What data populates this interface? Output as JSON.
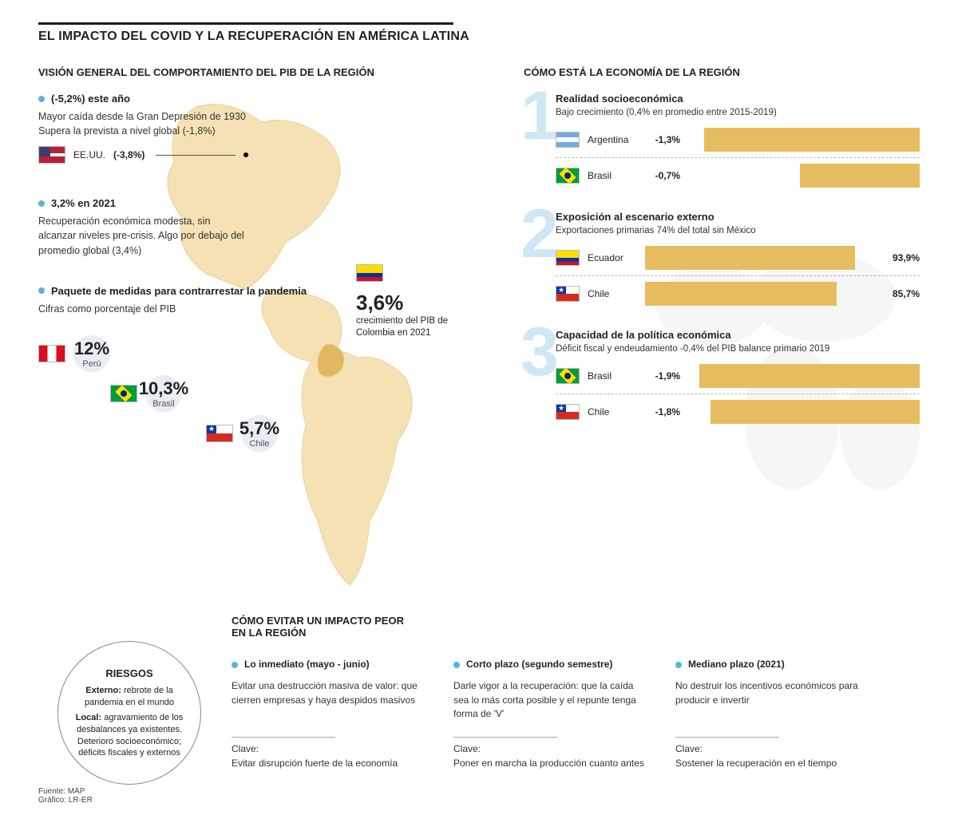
{
  "colors": {
    "accent": "#5cb3d9",
    "bar": "#e6bd5e",
    "bignum": "#cfe7f5",
    "map": "#f5e0b0"
  },
  "title": "EL IMPACTO DEL COVID Y LA RECUPERACIÓN EN AMÉRICA LATINA",
  "left_heading": "VISIÓN GENERAL DEL COMPORTAMIENTO DEL PIB DE LA REGIÓN",
  "right_heading": "CÓMO ESTÁ LA ECONOMÍA DE LA REGIÓN",
  "bullets": [
    {
      "title": "(-5,2%) este año",
      "lines": [
        "Mayor caída desde la Gran Depresión de 1930",
        "Supera la prevista a nivel global (-1,8%)"
      ],
      "us": {
        "label": "EE.UU.",
        "value": "(-3,8%)"
      }
    },
    {
      "title": "3,2% en 2021",
      "lines": [
        "Recuperación económica modesta, sin alcanzar niveles pre-crisis. Algo por debajo del promedio global (3,4%)"
      ]
    },
    {
      "title": "Paquete de medidas para contrarrestar la pandemia",
      "sub": "Cifras como porcentaje del PIB"
    }
  ],
  "stimulus": [
    {
      "country": "Perú",
      "flag": "pe",
      "value": "12%"
    },
    {
      "country": "Brasil",
      "flag": "br",
      "value": "10,3%"
    },
    {
      "country": "Chile",
      "flag": "cl",
      "value": "5,7%"
    }
  ],
  "colombia": {
    "value": "3,6%",
    "text": "crecimiento del PIB de Colombia en 2021"
  },
  "risks": {
    "heading": "RIESGOS",
    "externo_label": "Externo:",
    "externo": "rebrote de la pandemia en el mundo",
    "local_label": "Local:",
    "local": "agravamiento de los desbalances ya existentes. Deterioro socioeconómico; déficits fiscales y externos"
  },
  "groups": [
    {
      "num": "1",
      "title": "Realidad socioeconómica",
      "sub": "Bajo crecimiento (0,4% en promedio entre 2015-2019)",
      "mode": "neg",
      "max": 1.4,
      "rows": [
        {
          "country": "Argentina",
          "flag": "ar",
          "value": "-1,3%",
          "num": 1.3
        },
        {
          "country": "Brasil",
          "flag": "br",
          "value": "-0,7%",
          "num": 0.7
        }
      ]
    },
    {
      "num": "2",
      "title": "Exposición al escenario externo",
      "sub": "Exportaciones primarias 74% del total sin México",
      "mode": "pos",
      "max": 100,
      "rows": [
        {
          "country": "Ecuador",
          "flag": "ec",
          "value": "93,9%",
          "num": 93.9
        },
        {
          "country": "Chile",
          "flag": "cl",
          "value": "85,7%",
          "num": 85.7
        }
      ]
    },
    {
      "num": "3",
      "title": "Capacidad de la política económica",
      "sub": "Déficit fiscal y endeudamiento -0,4% del PIB balance primario 2019",
      "mode": "neg",
      "max": 2.0,
      "rows": [
        {
          "country": "Brasil",
          "flag": "br",
          "value": "-1,9%",
          "num": 1.9
        },
        {
          "country": "Chile",
          "flag": "cl",
          "value": "-1,8%",
          "num": 1.8
        }
      ]
    }
  ],
  "advice_heading": "CÓMO EVITAR UN IMPACTO PEOR EN LA REGIÓN",
  "advice": [
    {
      "title": "Lo inmediato (mayo - junio)",
      "body": "Evitar una destrucción masiva de valor: que cierren empresas y haya despidos masivos",
      "key_label": "Clave:",
      "key": "Evitar disrupción fuerte de la economía"
    },
    {
      "title": "Corto plazo (segundo semestre)",
      "body": "Darle vigor a la recuperación: que la caída sea lo más corta posible y el repunte tenga forma de 'V'",
      "key_label": "Clave:",
      "key": "Poner en marcha la producción cuanto antes"
    },
    {
      "title": "Mediano plazo (2021)",
      "body": "No destruir los incentivos económicos para producir e invertir",
      "key_label": "Clave:",
      "key": "Sostener la recuperación en el tiempo"
    }
  ],
  "source": {
    "fuente": "Fuente: MAP",
    "grafico": "Gráfico: LR-ER"
  }
}
